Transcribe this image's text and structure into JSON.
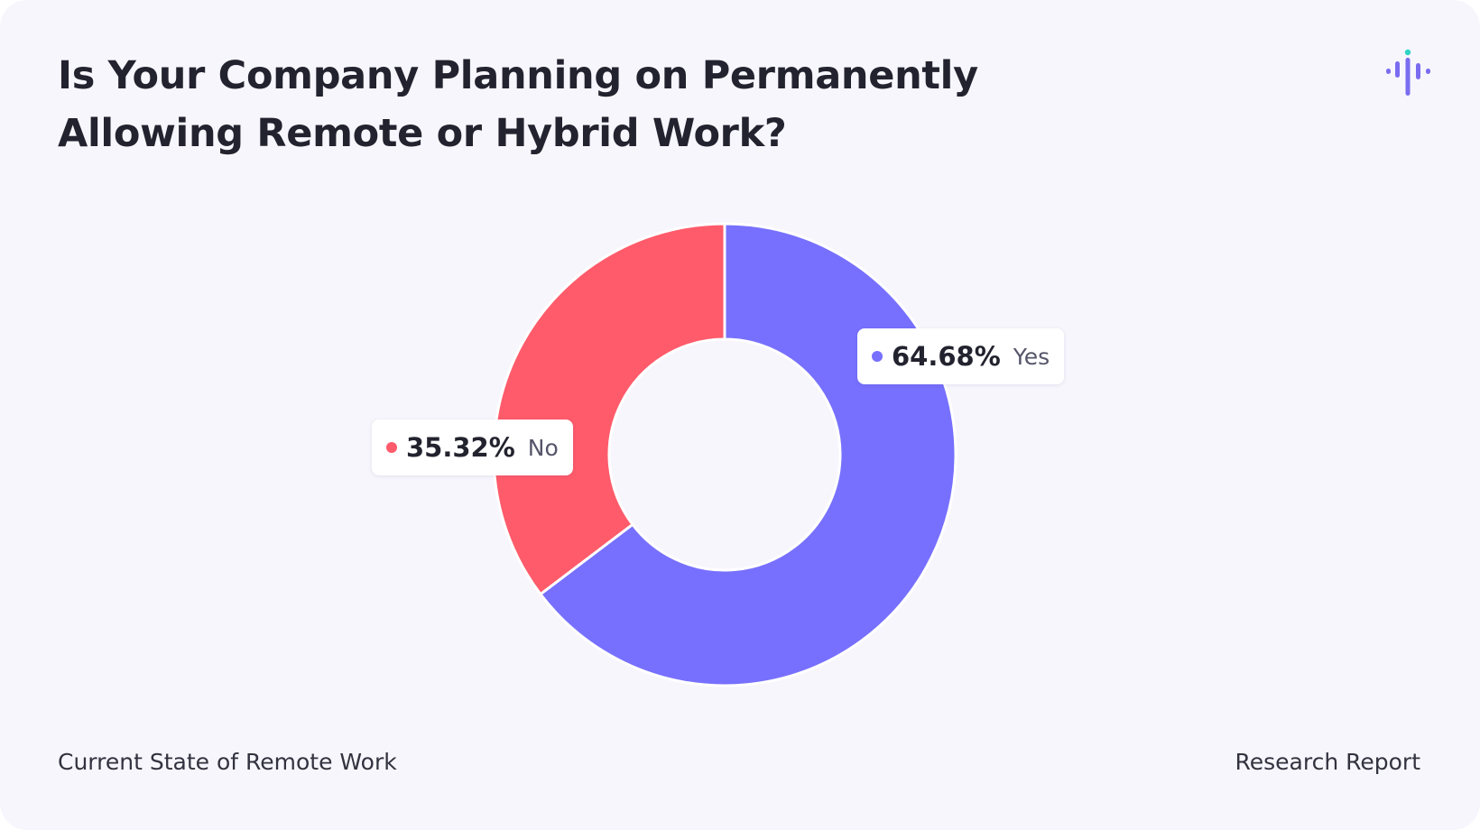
{
  "card": {
    "title": "Is Your Company Planning on Permanently Allowing Remote or Hybrid Work?",
    "footer_left": "Current State of Remote Work",
    "footer_right": "Research Report",
    "logo_icon": "audio-wave-logo-icon"
  },
  "colors": {
    "yes": "#7770fe",
    "no": "#ff5b6b",
    "logo_bar": "#7a6cf0",
    "logo_dot": "#2fd4c4"
  },
  "chart_data": {
    "type": "pie",
    "variant": "donut",
    "title": "Is Your Company Planning on Permanently Allowing Remote or Hybrid Work?",
    "categories": [
      "Yes",
      "No"
    ],
    "values": [
      64.68,
      35.32
    ],
    "value_labels": [
      "64.68%",
      "35.32%"
    ],
    "start_angle_deg": 0,
    "direction": "clockwise",
    "legend": "none",
    "data_labels": "callout boxes beside slices"
  }
}
